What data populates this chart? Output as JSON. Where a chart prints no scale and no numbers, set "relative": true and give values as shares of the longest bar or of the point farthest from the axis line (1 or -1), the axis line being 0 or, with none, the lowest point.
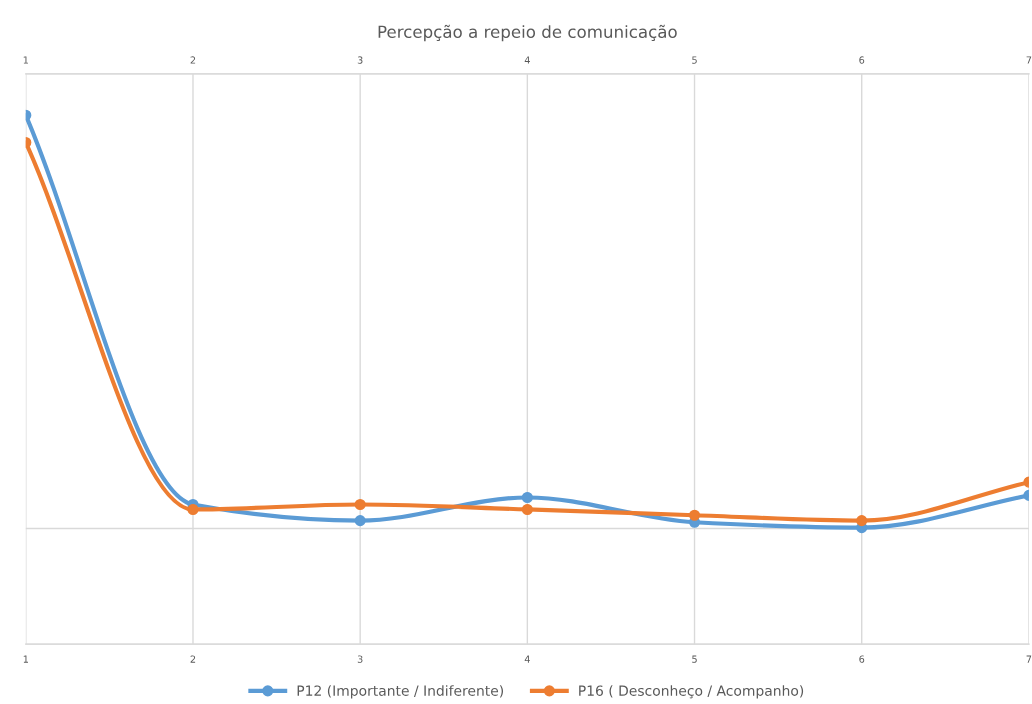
{
  "chart_data": {
    "type": "line",
    "title": "Percepção a repeio de comunicação",
    "relative": true,
    "x": [
      1,
      2,
      3,
      4,
      5,
      6,
      7
    ],
    "xlim": [
      1,
      7
    ],
    "xticks": [
      1,
      2,
      3,
      4,
      5,
      6,
      7
    ],
    "x2lim": [
      1,
      7
    ],
    "x2ticks": [
      1,
      2,
      3,
      4,
      5,
      6,
      7
    ],
    "tick_labels": "x",
    "grid": "x",
    "legend": "bottom",
    "marker": "circle",
    "line_style": "solid",
    "series": [
      {
        "name": "P12 (Importante / Indiferente)",
        "color": "#5b9bd5",
        "values": [
          1,
          0.058,
          0.019,
          0.075,
          0.015,
          0.002,
          0.08
        ]
      },
      {
        "name": "P16 ( Desconheço / Acompanho)",
        "color": "#ed7d31",
        "values": [
          0.934,
          0.046,
          0.058,
          0.046,
          0.032,
          0.019,
          0.112
        ]
      }
    ]
  }
}
